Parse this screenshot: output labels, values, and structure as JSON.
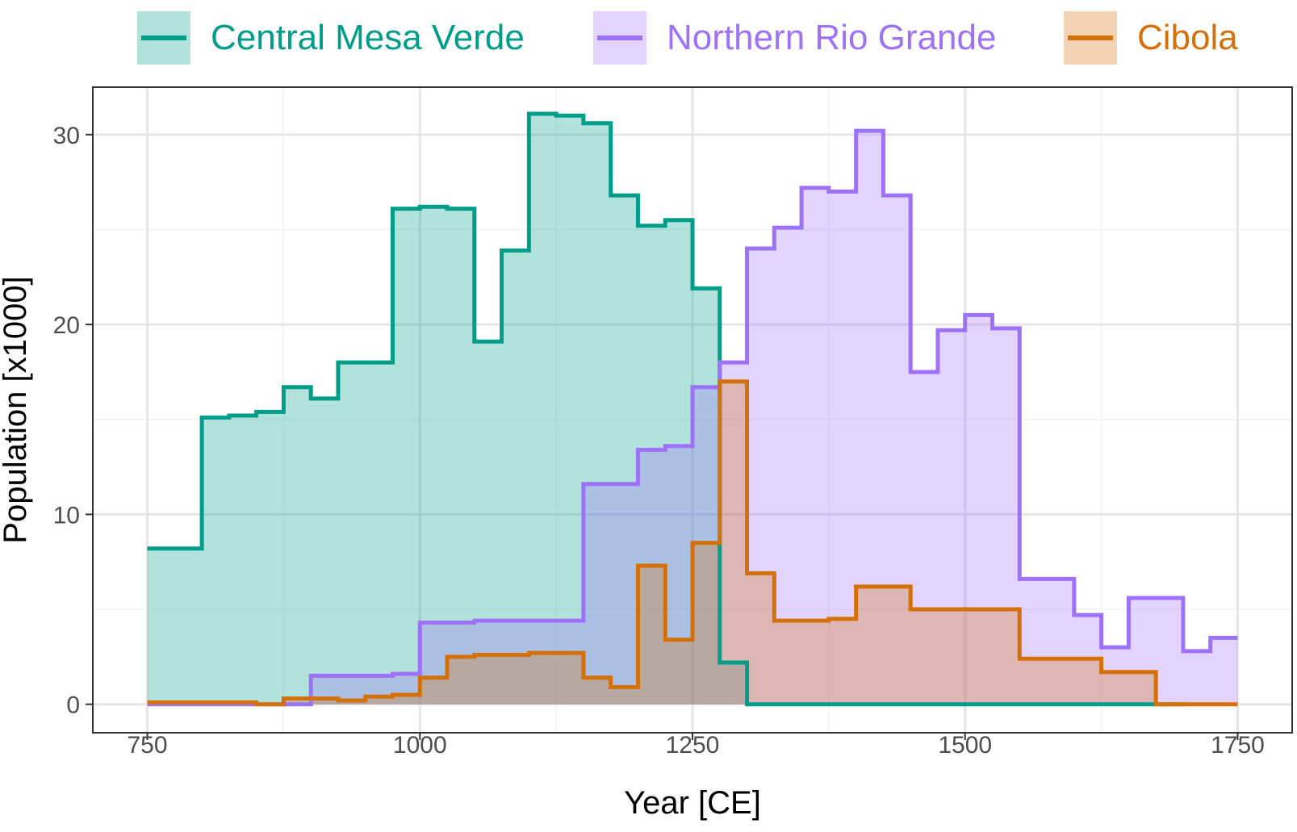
{
  "chart_data": {
    "type": "area",
    "step": true,
    "xlabel": "Year [CE]",
    "ylabel": "Population [x1000]",
    "xlim": [
      700,
      1800
    ],
    "ylim": [
      -1.5,
      32.5
    ],
    "xticks": [
      750,
      1000,
      1250,
      1500,
      1750
    ],
    "yticks": [
      0,
      10,
      20,
      30
    ],
    "grid": true,
    "legend_position": "top",
    "series": [
      {
        "name": "Central Mesa Verde",
        "color": "#009E8A",
        "fill": "#B3E2DC",
        "points": [
          [
            750,
            8.2
          ],
          [
            775,
            8.2
          ],
          [
            800,
            15.1
          ],
          [
            825,
            15.2
          ],
          [
            850,
            15.4
          ],
          [
            875,
            16.7
          ],
          [
            900,
            16.1
          ],
          [
            925,
            18.0
          ],
          [
            950,
            18.0
          ],
          [
            975,
            26.1
          ],
          [
            1000,
            26.2
          ],
          [
            1025,
            26.1
          ],
          [
            1050,
            19.1
          ],
          [
            1075,
            23.9
          ],
          [
            1100,
            31.1
          ],
          [
            1125,
            31.0
          ],
          [
            1150,
            30.6
          ],
          [
            1175,
            26.8
          ],
          [
            1200,
            25.2
          ],
          [
            1225,
            25.5
          ],
          [
            1250,
            21.9
          ],
          [
            1275,
            2.2
          ],
          [
            1300,
            0.0
          ],
          [
            1325,
            0.0
          ],
          [
            1350,
            0.0
          ],
          [
            1375,
            0.0
          ],
          [
            1400,
            0.0
          ],
          [
            1425,
            0.0
          ],
          [
            1450,
            0.0
          ],
          [
            1475,
            0.0
          ],
          [
            1500,
            0.0
          ],
          [
            1525,
            0.0
          ],
          [
            1550,
            0.0
          ],
          [
            1575,
            0.0
          ],
          [
            1600,
            0.0
          ],
          [
            1625,
            0.0
          ],
          [
            1650,
            0.0
          ],
          [
            1675,
            0.0
          ]
        ]
      },
      {
        "name": "Northern Rio Grande",
        "color": "#9E72F7",
        "fill": "#DCD0FC",
        "points": [
          [
            750,
            0.0
          ],
          [
            775,
            0.0
          ],
          [
            800,
            0.0
          ],
          [
            825,
            0.0
          ],
          [
            850,
            0.0
          ],
          [
            875,
            0.0
          ],
          [
            900,
            1.5
          ],
          [
            925,
            1.5
          ],
          [
            950,
            1.5
          ],
          [
            975,
            1.6
          ],
          [
            1000,
            4.3
          ],
          [
            1025,
            4.3
          ],
          [
            1050,
            4.4
          ],
          [
            1075,
            4.4
          ],
          [
            1100,
            4.4
          ],
          [
            1125,
            4.4
          ],
          [
            1150,
            11.6
          ],
          [
            1175,
            11.6
          ],
          [
            1200,
            13.4
          ],
          [
            1225,
            13.6
          ],
          [
            1250,
            16.7
          ],
          [
            1275,
            18.0
          ],
          [
            1300,
            24.0
          ],
          [
            1325,
            25.1
          ],
          [
            1350,
            27.2
          ],
          [
            1375,
            27.0
          ],
          [
            1400,
            30.2
          ],
          [
            1425,
            26.8
          ],
          [
            1450,
            17.5
          ],
          [
            1475,
            19.7
          ],
          [
            1500,
            20.5
          ],
          [
            1525,
            19.8
          ],
          [
            1550,
            6.6
          ],
          [
            1575,
            6.6
          ],
          [
            1600,
            4.7
          ],
          [
            1625,
            3.0
          ],
          [
            1650,
            5.6
          ],
          [
            1675,
            5.6
          ],
          [
            1700,
            2.8
          ],
          [
            1725,
            3.5
          ]
        ]
      },
      {
        "name": "Cibola",
        "color": "#D4700A",
        "fill": "#F2CFAE",
        "points": [
          [
            750,
            0.1
          ],
          [
            775,
            0.1
          ],
          [
            800,
            0.1
          ],
          [
            825,
            0.1
          ],
          [
            850,
            0.0
          ],
          [
            875,
            0.3
          ],
          [
            900,
            0.3
          ],
          [
            925,
            0.2
          ],
          [
            950,
            0.4
          ],
          [
            975,
            0.5
          ],
          [
            1000,
            1.4
          ],
          [
            1025,
            2.5
          ],
          [
            1050,
            2.6
          ],
          [
            1075,
            2.6
          ],
          [
            1100,
            2.7
          ],
          [
            1125,
            2.7
          ],
          [
            1150,
            1.4
          ],
          [
            1175,
            0.9
          ],
          [
            1200,
            7.3
          ],
          [
            1225,
            3.4
          ],
          [
            1250,
            8.5
          ],
          [
            1275,
            17.0
          ],
          [
            1300,
            6.9
          ],
          [
            1325,
            4.4
          ],
          [
            1350,
            4.4
          ],
          [
            1375,
            4.5
          ],
          [
            1400,
            6.2
          ],
          [
            1425,
            6.2
          ],
          [
            1450,
            5.0
          ],
          [
            1475,
            5.0
          ],
          [
            1500,
            5.0
          ],
          [
            1525,
            5.0
          ],
          [
            1550,
            2.4
          ],
          [
            1575,
            2.4
          ],
          [
            1600,
            2.4
          ],
          [
            1625,
            1.7
          ],
          [
            1650,
            1.7
          ],
          [
            1675,
            0.0
          ],
          [
            1700,
            0.0
          ],
          [
            1725,
            0.0
          ]
        ]
      }
    ]
  }
}
